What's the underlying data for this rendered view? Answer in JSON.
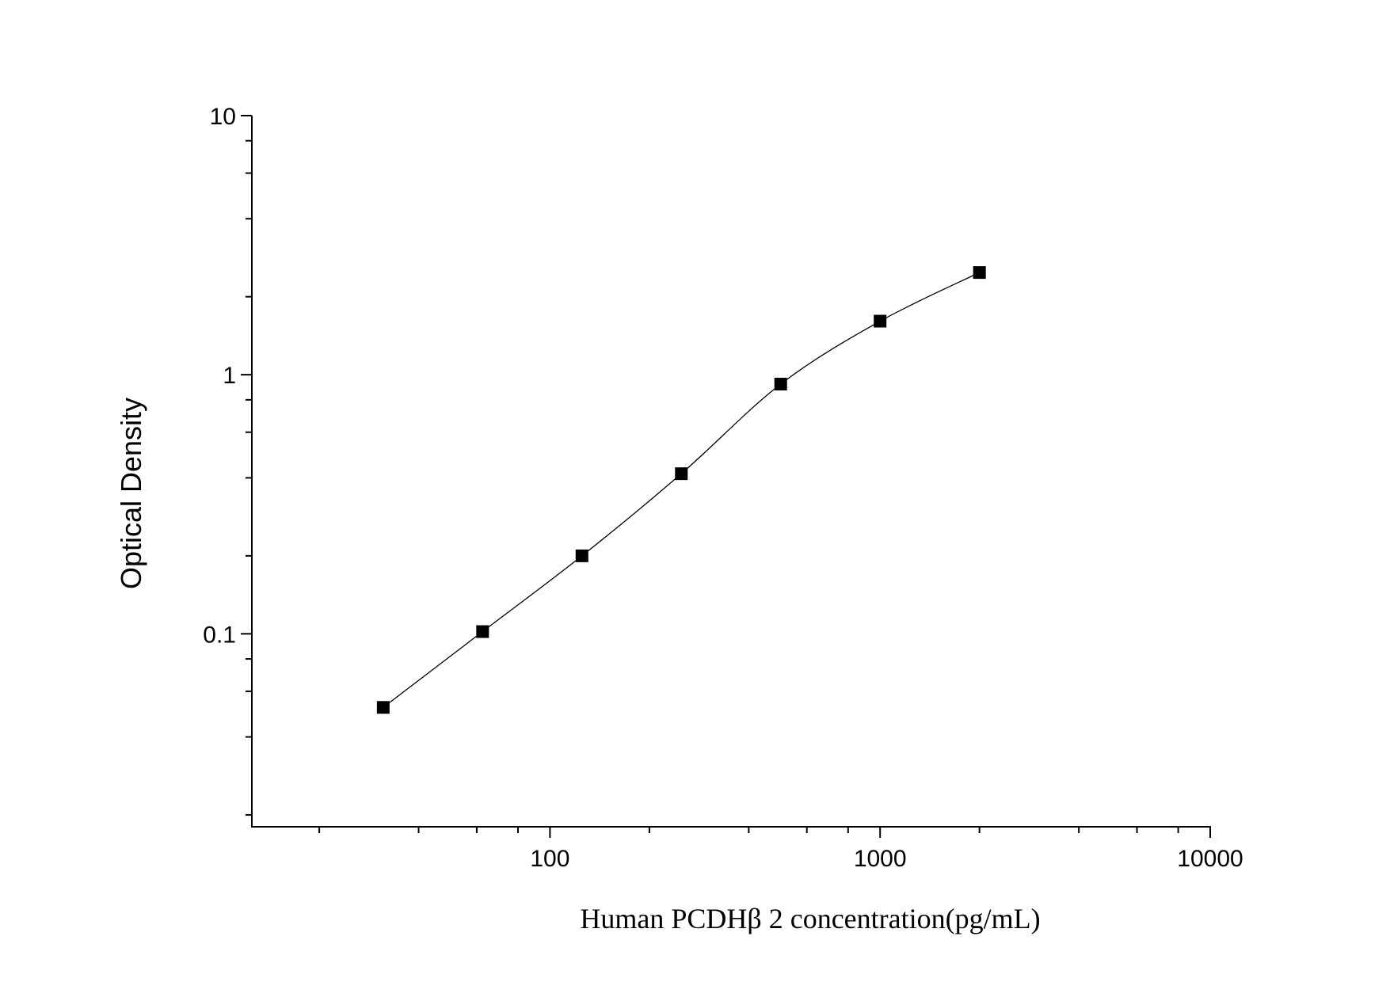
{
  "chart_data": {
    "type": "scatter",
    "xlabel": "Human PCDHβ 2 concentration(pg/mL)",
    "ylabel": "Optical Density",
    "x": [
      31.25,
      62.5,
      125,
      250,
      500,
      1000,
      2000
    ],
    "series": [
      {
        "color": "#000000",
        "values": [
          0.052,
          0.102,
          0.2,
          0.415,
          0.92,
          1.61,
          2.48
        ]
      }
    ],
    "xlim": [
      12.5,
      10000
    ],
    "ylim": [
      0.018,
      10
    ],
    "xticks": [
      100,
      1000,
      10000
    ],
    "yticks": [
      0.1,
      1,
      10
    ],
    "xminorticks": [
      20,
      40,
      60,
      80,
      200,
      400,
      600,
      800,
      2000,
      4000,
      6000,
      8000
    ],
    "yminorticks": [
      0.02,
      0.04,
      0.06,
      0.08,
      0.2,
      0.4,
      0.6,
      0.8,
      2,
      4,
      6,
      8
    ],
    "xscale": "log",
    "yscale": "log",
    "fit_curve": true
  }
}
